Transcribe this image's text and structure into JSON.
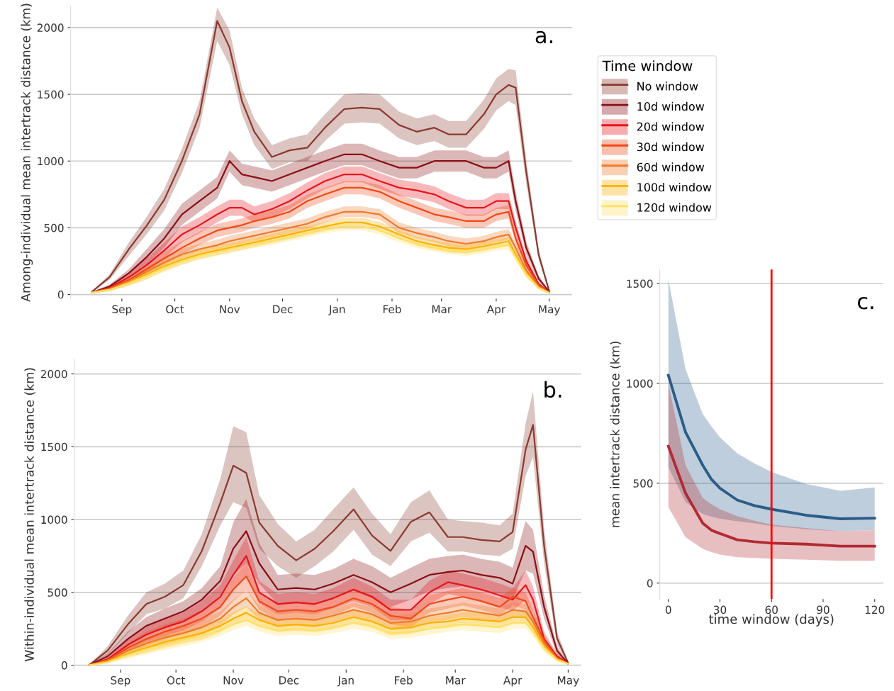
{
  "chart_data": [
    {
      "type": "line",
      "ylabel": "Among-individual mean intertrack distance (km)",
      "legend_title": "Time window",
      "legend": "right",
      "grid": "y",
      "annotations": [
        "a."
      ],
      "xlim": [
        "2000-08-03",
        "2001-05-14"
      ],
      "ylim": [
        -30,
        2160
      ],
      "yticks": [
        0,
        500,
        1000,
        1500,
        2000
      ],
      "xticks": [
        {
          "value": "2000-09-01",
          "label": "Sep"
        },
        {
          "value": "2000-10-01",
          "label": "Oct"
        },
        {
          "value": "2000-11-01",
          "label": "Nov"
        },
        {
          "value": "2000-12-01",
          "label": "Dec"
        },
        {
          "value": "2001-01-01",
          "label": "Jan"
        },
        {
          "value": "2001-02-01",
          "label": "Feb"
        },
        {
          "value": "2001-03-01",
          "label": "Mar"
        },
        {
          "value": "2001-04-01",
          "label": "Apr"
        },
        {
          "value": "2001-05-01",
          "label": "May"
        }
      ],
      "x": [
        "2000-08-15",
        "2000-08-25",
        "2000-09-05",
        "2000-09-15",
        "2000-09-25",
        "2000-10-05",
        "2000-10-15",
        "2000-10-25",
        "2000-11-01",
        "2000-11-08",
        "2000-11-15",
        "2000-11-25",
        "2000-12-05",
        "2000-12-15",
        "2000-12-25",
        "2001-01-05",
        "2001-01-15",
        "2001-01-25",
        "2001-02-05",
        "2001-02-15",
        "2001-02-25",
        "2001-03-05",
        "2001-03-15",
        "2001-03-25",
        "2001-04-01",
        "2001-04-08",
        "2001-04-12",
        "2001-04-18",
        "2001-04-25",
        "2001-05-01"
      ],
      "series": [
        {
          "name": "No window",
          "color": "#8b3a2f",
          "values": [
            20,
            130,
            340,
            515,
            710,
            1000,
            1350,
            2050,
            1850,
            1450,
            1220,
            1030,
            1080,
            1100,
            1250,
            1390,
            1400,
            1390,
            1270,
            1220,
            1250,
            1200,
            1200,
            1350,
            1500,
            1570,
            1550,
            920,
            300,
            25
          ],
          "lower": [
            15,
            110,
            290,
            450,
            630,
            910,
            1250,
            1900,
            1720,
            1350,
            1120,
            940,
            990,
            1000,
            1150,
            1280,
            1290,
            1280,
            1170,
            1120,
            1150,
            1100,
            1100,
            1240,
            1380,
            1450,
            1420,
            830,
            260,
            20
          ],
          "upper": [
            25,
            150,
            390,
            580,
            790,
            1090,
            1450,
            2150,
            1980,
            1550,
            1320,
            1120,
            1170,
            1200,
            1350,
            1500,
            1510,
            1500,
            1370,
            1320,
            1350,
            1300,
            1300,
            1460,
            1620,
            1690,
            1680,
            1010,
            340,
            30
          ]
        },
        {
          "name": "10d window",
          "color": "#8b0f14",
          "values": [
            15,
            60,
            160,
            280,
            420,
            600,
            700,
            800,
            1000,
            900,
            880,
            850,
            900,
            950,
            1000,
            1050,
            1050,
            1000,
            950,
            950,
            1000,
            1000,
            1000,
            950,
            950,
            1000,
            700,
            350,
            120,
            20
          ],
          "lower": [
            10,
            45,
            130,
            220,
            350,
            520,
            620,
            720,
            920,
            820,
            800,
            770,
            820,
            870,
            920,
            970,
            970,
            920,
            870,
            870,
            920,
            920,
            920,
            870,
            870,
            920,
            630,
            300,
            100,
            15
          ],
          "upper": [
            20,
            75,
            190,
            340,
            490,
            680,
            780,
            880,
            1080,
            980,
            960,
            930,
            980,
            1030,
            1080,
            1130,
            1130,
            1080,
            1030,
            1030,
            1080,
            1080,
            1080,
            1030,
            1030,
            1080,
            770,
            400,
            140,
            25
          ]
        },
        {
          "name": "20d window",
          "color": "#e8151b",
          "values": [
            15,
            50,
            130,
            220,
            330,
            450,
            520,
            600,
            650,
            650,
            600,
            640,
            700,
            780,
            850,
            900,
            900,
            850,
            800,
            780,
            750,
            700,
            650,
            650,
            700,
            700,
            500,
            250,
            80,
            15
          ],
          "lower": [
            10,
            40,
            100,
            170,
            270,
            390,
            460,
            540,
            590,
            590,
            540,
            580,
            640,
            720,
            790,
            840,
            840,
            790,
            740,
            720,
            690,
            640,
            590,
            590,
            640,
            640,
            450,
            210,
            65,
            10
          ],
          "upper": [
            20,
            60,
            160,
            270,
            390,
            510,
            580,
            660,
            710,
            710,
            660,
            700,
            760,
            840,
            910,
            960,
            960,
            910,
            860,
            840,
            810,
            760,
            710,
            710,
            760,
            760,
            550,
            290,
            95,
            20
          ]
        },
        {
          "name": "30d window",
          "color": "#f04a17",
          "values": [
            15,
            45,
            110,
            190,
            270,
            350,
            420,
            480,
            500,
            520,
            550,
            580,
            620,
            700,
            750,
            800,
            800,
            770,
            700,
            650,
            600,
            580,
            550,
            550,
            600,
            620,
            420,
            220,
            70,
            15
          ],
          "lower": [
            10,
            35,
            85,
            150,
            220,
            300,
            370,
            430,
            450,
            470,
            500,
            530,
            570,
            650,
            700,
            750,
            750,
            720,
            650,
            600,
            550,
            530,
            500,
            500,
            550,
            570,
            380,
            190,
            55,
            10
          ],
          "upper": [
            20,
            55,
            135,
            230,
            320,
            400,
            470,
            530,
            550,
            570,
            600,
            630,
            670,
            750,
            800,
            850,
            850,
            820,
            750,
            700,
            650,
            630,
            600,
            600,
            650,
            670,
            460,
            250,
            85,
            20
          ]
        },
        {
          "name": "60d window",
          "color": "#f07a2a",
          "values": [
            15,
            40,
            100,
            170,
            240,
            300,
            340,
            370,
            400,
            420,
            440,
            470,
            500,
            530,
            580,
            620,
            620,
            600,
            500,
            460,
            430,
            400,
            380,
            400,
            430,
            450,
            350,
            180,
            60,
            15
          ],
          "lower": [
            10,
            30,
            75,
            135,
            200,
            260,
            300,
            330,
            360,
            380,
            400,
            430,
            460,
            490,
            540,
            580,
            580,
            560,
            460,
            420,
            390,
            360,
            340,
            360,
            390,
            410,
            315,
            150,
            45,
            10
          ],
          "upper": [
            20,
            50,
            125,
            205,
            280,
            340,
            380,
            410,
            440,
            460,
            480,
            510,
            540,
            570,
            620,
            660,
            660,
            640,
            540,
            500,
            470,
            440,
            420,
            440,
            470,
            490,
            385,
            210,
            75,
            20
          ]
        },
        {
          "name": "100d window",
          "color": "#ffb000",
          "values": [
            15,
            35,
            90,
            150,
            210,
            260,
            300,
            330,
            350,
            370,
            390,
            420,
            450,
            480,
            510,
            540,
            540,
            510,
            450,
            400,
            370,
            350,
            340,
            360,
            380,
            400,
            300,
            160,
            50,
            12
          ],
          "lower": [
            10,
            25,
            65,
            115,
            175,
            225,
            265,
            295,
            315,
            335,
            355,
            385,
            415,
            445,
            475,
            505,
            505,
            475,
            415,
            365,
            335,
            315,
            305,
            325,
            345,
            365,
            270,
            130,
            40,
            8
          ],
          "upper": [
            20,
            45,
            115,
            185,
            245,
            295,
            335,
            365,
            385,
            405,
            425,
            455,
            485,
            515,
            545,
            575,
            575,
            545,
            485,
            435,
            405,
            385,
            375,
            395,
            415,
            435,
            330,
            190,
            60,
            16
          ]
        },
        {
          "name": "120d window",
          "color": "#ffe066",
          "values": [
            15,
            35,
            85,
            140,
            200,
            250,
            290,
            320,
            340,
            360,
            380,
            400,
            430,
            460,
            490,
            510,
            510,
            480,
            420,
            380,
            350,
            330,
            320,
            340,
            360,
            370,
            280,
            150,
            50,
            12
          ],
          "lower": [
            10,
            25,
            65,
            110,
            170,
            220,
            260,
            290,
            310,
            330,
            350,
            370,
            400,
            430,
            460,
            480,
            480,
            450,
            390,
            350,
            320,
            300,
            290,
            310,
            330,
            340,
            250,
            125,
            40,
            8
          ],
          "upper": [
            20,
            45,
            105,
            170,
            230,
            280,
            320,
            350,
            370,
            390,
            410,
            430,
            460,
            490,
            520,
            540,
            540,
            510,
            450,
            410,
            380,
            360,
            350,
            370,
            390,
            400,
            310,
            175,
            60,
            16
          ]
        }
      ]
    },
    {
      "type": "line",
      "ylabel": "Within-individual mean intertrack distance (km)",
      "grid": "y",
      "annotations": [
        "b."
      ],
      "xlim": [
        "2000-08-07",
        "2001-05-08"
      ],
      "ylim": [
        -30,
        2100
      ],
      "yticks": [
        0,
        500,
        1000,
        1500,
        2000
      ],
      "xticks": [
        {
          "value": "2000-09-01",
          "label": "Sep"
        },
        {
          "value": "2000-10-01",
          "label": "Oct"
        },
        {
          "value": "2000-11-01",
          "label": "Nov"
        },
        {
          "value": "2000-12-01",
          "label": "Dec"
        },
        {
          "value": "2001-01-01",
          "label": "Jan"
        },
        {
          "value": "2001-02-01",
          "label": "Feb"
        },
        {
          "value": "2001-03-01",
          "label": "Mar"
        },
        {
          "value": "2001-04-01",
          "label": "Apr"
        },
        {
          "value": "2001-05-01",
          "label": "May"
        }
      ],
      "x": [
        "2000-08-15",
        "2000-08-25",
        "2000-09-05",
        "2000-09-15",
        "2000-09-25",
        "2000-10-05",
        "2000-10-15",
        "2000-10-25",
        "2000-11-01",
        "2000-11-08",
        "2000-11-15",
        "2000-11-25",
        "2000-12-05",
        "2000-12-15",
        "2000-12-25",
        "2001-01-05",
        "2001-01-15",
        "2001-01-25",
        "2001-02-05",
        "2001-02-15",
        "2001-02-25",
        "2001-03-05",
        "2001-03-15",
        "2001-03-25",
        "2001-04-01",
        "2001-04-08",
        "2001-04-12",
        "2001-04-18",
        "2001-04-25",
        "2001-05-01"
      ],
      "series": [
        {
          "color": "#8b3a2f",
          "values": [
            0,
            100,
            280,
            420,
            470,
            550,
            785,
            1115,
            1370,
            1320,
            980,
            820,
            720,
            800,
            920,
            1070,
            890,
            785,
            985,
            1050,
            880,
            880,
            860,
            850,
            915,
            1480,
            1650,
            820,
            185,
            15
          ],
          "lower": [
            0,
            70,
            220,
            350,
            390,
            460,
            680,
            960,
            1120,
            1080,
            800,
            680,
            600,
            680,
            780,
            930,
            760,
            680,
            850,
            910,
            780,
            780,
            760,
            750,
            800,
            1300,
            1430,
            700,
            140,
            10
          ],
          "upper": [
            0,
            130,
            340,
            500,
            560,
            650,
            900,
            1280,
            1640,
            1600,
            1170,
            970,
            850,
            930,
            1070,
            1220,
            1040,
            900,
            1120,
            1200,
            1000,
            990,
            980,
            960,
            1040,
            1660,
            1880,
            940,
            230,
            25
          ]
        },
        {
          "color": "#8b0f14",
          "values": [
            0,
            60,
            180,
            270,
            320,
            370,
            450,
            580,
            800,
            920,
            700,
            520,
            530,
            520,
            560,
            620,
            570,
            500,
            560,
            620,
            640,
            650,
            620,
            600,
            560,
            820,
            780,
            400,
            100,
            10
          ],
          "lower": [
            0,
            40,
            130,
            210,
            250,
            300,
            370,
            480,
            620,
            700,
            560,
            420,
            430,
            420,
            460,
            510,
            460,
            400,
            450,
            510,
            530,
            540,
            510,
            490,
            450,
            650,
            630,
            320,
            70,
            5
          ],
          "upper": [
            0,
            80,
            230,
            330,
            390,
            440,
            530,
            680,
            980,
            1140,
            840,
            620,
            630,
            620,
            660,
            730,
            680,
            600,
            670,
            730,
            750,
            760,
            730,
            710,
            670,
            990,
            930,
            480,
            130,
            15
          ]
        },
        {
          "color": "#e8151b",
          "values": [
            0,
            40,
            140,
            210,
            260,
            300,
            370,
            470,
            620,
            750,
            500,
            420,
            430,
            420,
            460,
            520,
            470,
            380,
            380,
            500,
            570,
            550,
            520,
            480,
            450,
            550,
            450,
            180,
            60,
            10
          ],
          "lower": [
            0,
            30,
            100,
            160,
            200,
            240,
            300,
            390,
            520,
            620,
            420,
            350,
            360,
            350,
            390,
            440,
            400,
            310,
            310,
            420,
            490,
            470,
            440,
            400,
            370,
            450,
            360,
            130,
            40,
            5
          ],
          "upper": [
            0,
            50,
            180,
            260,
            320,
            360,
            440,
            550,
            720,
            880,
            580,
            490,
            500,
            490,
            530,
            600,
            540,
            450,
            450,
            580,
            650,
            630,
            600,
            560,
            530,
            650,
            540,
            230,
            80,
            15
          ]
        },
        {
          "color": "#f04a17",
          "values": [
            0,
            35,
            120,
            180,
            230,
            270,
            320,
            400,
            520,
            610,
            440,
            370,
            380,
            370,
            400,
            460,
            420,
            340,
            320,
            420,
            450,
            470,
            440,
            400,
            470,
            440,
            330,
            170,
            50,
            10
          ],
          "lower": [
            0,
            25,
            90,
            130,
            180,
            220,
            260,
            340,
            440,
            520,
            380,
            310,
            320,
            310,
            340,
            400,
            360,
            280,
            260,
            360,
            390,
            410,
            380,
            340,
            410,
            380,
            280,
            130,
            35,
            5
          ],
          "upper": [
            0,
            45,
            150,
            230,
            280,
            320,
            380,
            460,
            600,
            700,
            500,
            430,
            440,
            430,
            460,
            520,
            480,
            400,
            380,
            480,
            510,
            530,
            500,
            460,
            530,
            500,
            380,
            210,
            65,
            15
          ]
        },
        {
          "color": "#f07a2a",
          "values": [
            0,
            30,
            100,
            150,
            190,
            220,
            260,
            320,
            400,
            460,
            360,
            310,
            320,
            310,
            340,
            380,
            350,
            290,
            300,
            340,
            360,
            380,
            360,
            340,
            380,
            370,
            300,
            150,
            45,
            10
          ],
          "lower": [
            0,
            20,
            75,
            110,
            145,
            175,
            210,
            270,
            350,
            400,
            310,
            260,
            270,
            260,
            290,
            330,
            300,
            240,
            250,
            290,
            310,
            330,
            310,
            290,
            330,
            320,
            255,
            115,
            30,
            5
          ],
          "upper": [
            0,
            40,
            125,
            190,
            235,
            265,
            310,
            370,
            450,
            520,
            410,
            360,
            370,
            360,
            390,
            430,
            400,
            340,
            350,
            390,
            410,
            430,
            410,
            390,
            430,
            420,
            345,
            185,
            60,
            15
          ]
        },
        {
          "color": "#ffb000",
          "values": [
            0,
            25,
            80,
            120,
            160,
            190,
            220,
            270,
            320,
            360,
            310,
            270,
            280,
            270,
            290,
            330,
            300,
            250,
            260,
            290,
            300,
            320,
            310,
            300,
            330,
            330,
            260,
            130,
            40,
            10
          ],
          "lower": [
            0,
            15,
            55,
            85,
            120,
            150,
            175,
            225,
            275,
            315,
            265,
            225,
            235,
            225,
            245,
            285,
            255,
            205,
            215,
            245,
            255,
            275,
            265,
            255,
            285,
            285,
            220,
            100,
            28,
            5
          ],
          "upper": [
            0,
            35,
            105,
            155,
            200,
            230,
            265,
            315,
            365,
            405,
            355,
            315,
            325,
            315,
            335,
            375,
            345,
            295,
            305,
            335,
            345,
            365,
            355,
            345,
            375,
            375,
            300,
            160,
            52,
            15
          ]
        },
        {
          "color": "#ffe066",
          "values": [
            0,
            20,
            70,
            110,
            140,
            170,
            200,
            240,
            280,
            310,
            270,
            240,
            250,
            240,
            260,
            290,
            270,
            220,
            230,
            250,
            270,
            280,
            270,
            260,
            290,
            290,
            230,
            120,
            35,
            10
          ],
          "lower": [
            0,
            12,
            45,
            75,
            105,
            130,
            160,
            200,
            240,
            270,
            230,
            200,
            210,
            200,
            220,
            250,
            230,
            180,
            190,
            210,
            230,
            240,
            230,
            220,
            250,
            250,
            195,
            90,
            25,
            5
          ],
          "upper": [
            0,
            28,
            95,
            145,
            175,
            210,
            240,
            280,
            320,
            350,
            310,
            280,
            290,
            280,
            300,
            330,
            310,
            260,
            270,
            290,
            310,
            320,
            310,
            300,
            330,
            330,
            265,
            150,
            45,
            15
          ]
        }
      ]
    },
    {
      "type": "line",
      "xlabel": "time window (days)",
      "ylabel": "mean intertrack distance (km)",
      "grid": "y",
      "annotations": [
        "c."
      ],
      "xlim": [
        -5,
        125
      ],
      "ylim": [
        -80,
        1570
      ],
      "xticks": [
        0,
        30,
        60,
        90,
        120
      ],
      "yticks": [
        0,
        500,
        1000,
        1500
      ],
      "ref_lines": [
        {
          "axis": "x",
          "value": 60,
          "color": "#ff0000"
        }
      ],
      "x": [
        0,
        10,
        20,
        25,
        30,
        40,
        50,
        60,
        80,
        100,
        120
      ],
      "series": [
        {
          "color": "#2b5c8a",
          "values": [
            1040,
            755,
            590,
            520,
            475,
            416,
            388,
            370,
            340,
            322,
            325
          ],
          "lower": [
            580,
            405,
            346,
            333,
            322,
            310,
            300,
            287,
            270,
            259,
            266
          ],
          "upper": [
            1520,
            1070,
            846,
            785,
            730,
            650,
            600,
            556,
            497,
            462,
            479
          ]
        },
        {
          "color": "#b22a33",
          "values": [
            685,
            450,
            300,
            265,
            248,
            217,
            207,
            200,
            195,
            185,
            185
          ],
          "lower": [
            381,
            230,
            171,
            155,
            143,
            130,
            126,
            122,
            117,
            112,
            112
          ],
          "upper": [
            1000,
            590,
            427,
            395,
            370,
            335,
            312,
            293,
            276,
            259,
            265
          ]
        }
      ]
    }
  ]
}
